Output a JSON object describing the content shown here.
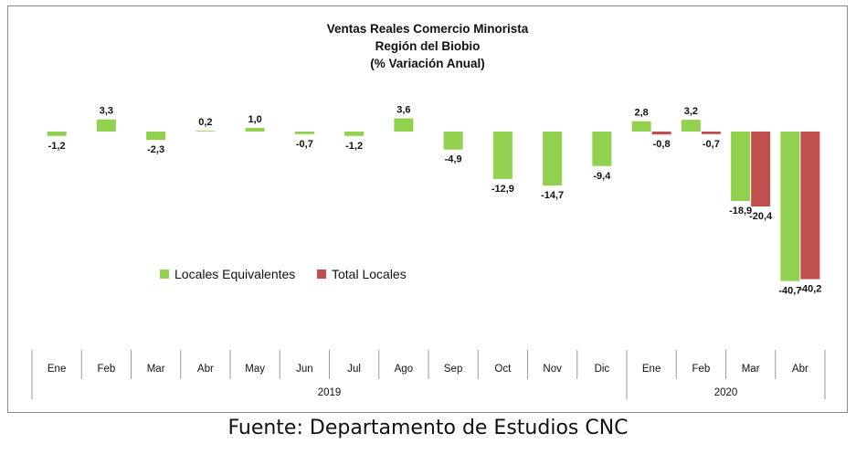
{
  "chart_data": {
    "type": "bar",
    "title_lines": [
      "Ventas Reales Comercio Minorista",
      "Región del Biobio",
      "(% Variación Anual)"
    ],
    "categories": [
      "Ene",
      "Feb",
      "Mar",
      "Abr",
      "May",
      "Jun",
      "Jul",
      "Ago",
      "Sep",
      "Oct",
      "Nov",
      "Dic",
      "Ene",
      "Feb",
      "Mar",
      "Abr"
    ],
    "year_groups": [
      {
        "label": "2019",
        "count": 12
      },
      {
        "label": "2020",
        "count": 4
      }
    ],
    "series": [
      {
        "name": "Locales Equivalentes",
        "color": "#92d050",
        "values": [
          -1.2,
          3.3,
          -2.3,
          0.2,
          1.0,
          -0.7,
          -1.2,
          3.6,
          -4.9,
          -12.9,
          -14.7,
          -9.4,
          2.8,
          3.2,
          -18.9,
          -40.7
        ],
        "labels": [
          "-1,2",
          "3,3",
          "-2,3",
          "0,2",
          "1,0",
          "-0,7",
          "-1,2",
          "3,6",
          "-4,9",
          "-12,9",
          "-14,7",
          "-9,4",
          "2,8",
          "3,2",
          "-18,9",
          "-40,7"
        ]
      },
      {
        "name": "Total Locales",
        "color": "#c0504d",
        "values": [
          null,
          null,
          null,
          null,
          null,
          null,
          null,
          null,
          null,
          null,
          null,
          null,
          -0.8,
          -0.7,
          -20.4,
          -40.2
        ],
        "labels": [
          null,
          null,
          null,
          null,
          null,
          null,
          null,
          null,
          null,
          null,
          null,
          null,
          "-0,8",
          "-0,7",
          "-20,4",
          "-40,2"
        ]
      }
    ],
    "legend_position": "center-left",
    "grid": false
  },
  "source_note": "Fuente: Departamento de Estudios CNC"
}
